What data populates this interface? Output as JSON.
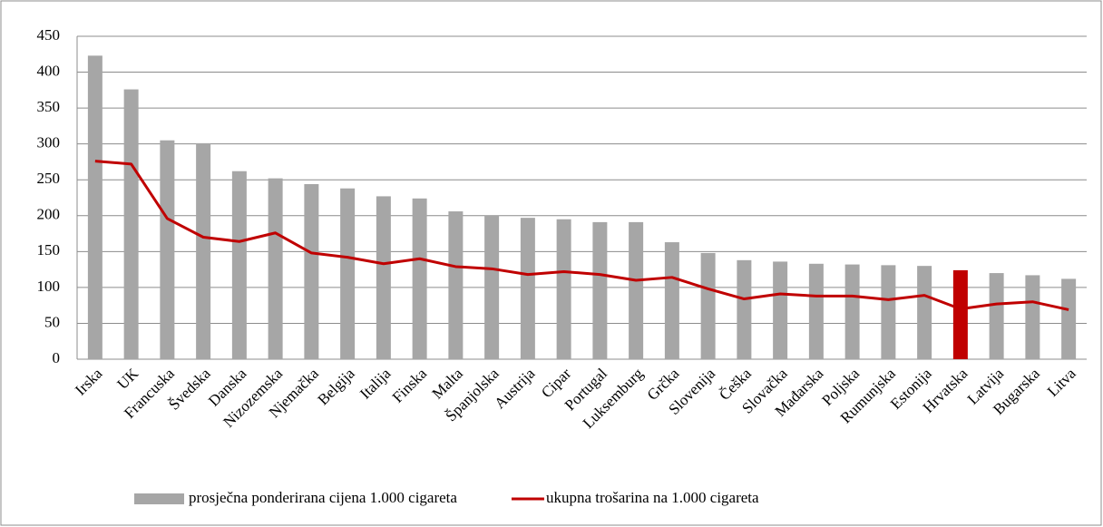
{
  "chart_data": {
    "type": "bar_line",
    "categories": [
      "Irska",
      "UK",
      "Francuska",
      "Švedska",
      "Danska",
      "Nizozemska",
      "Njemačka",
      "Belgija",
      "Italija",
      "Finska",
      "Malta",
      "Španjolska",
      "Austrija",
      "Cipar",
      "Portugal",
      "Luksemburg",
      "Grčka",
      "Slovenija",
      "Češka",
      "Slovačka",
      "Mađarska",
      "Poljska",
      "Rumunjska",
      "Estonija",
      "Hrvatska",
      "Latvija",
      "Bugarska",
      "Litva"
    ],
    "series": [
      {
        "name": "prosječna ponderirana cijena 1.000 cigareta",
        "type": "bar",
        "color": "#a6a6a6",
        "colors": [
          "#a6a6a6",
          "#a6a6a6",
          "#a6a6a6",
          "#a6a6a6",
          "#a6a6a6",
          "#a6a6a6",
          "#a6a6a6",
          "#a6a6a6",
          "#a6a6a6",
          "#a6a6a6",
          "#a6a6a6",
          "#a6a6a6",
          "#a6a6a6",
          "#a6a6a6",
          "#a6a6a6",
          "#a6a6a6",
          "#a6a6a6",
          "#a6a6a6",
          "#a6a6a6",
          "#a6a6a6",
          "#a6a6a6",
          "#a6a6a6",
          "#a6a6a6",
          "#a6a6a6",
          "#c00000",
          "#a6a6a6",
          "#a6a6a6",
          "#a6a6a6"
        ],
        "values": [
          423,
          376,
          305,
          301,
          262,
          252,
          244,
          238,
          227,
          224,
          206,
          200,
          197,
          195,
          191,
          191,
          163,
          148,
          138,
          136,
          133,
          132,
          131,
          130,
          124,
          120,
          117,
          112
        ]
      },
      {
        "name": "ukupna trošarina na 1.000 cigareta",
        "type": "line",
        "color": "#c00000",
        "values": [
          276,
          272,
          196,
          170,
          164,
          176,
          148,
          142,
          133,
          140,
          129,
          126,
          118,
          122,
          118,
          110,
          114,
          98,
          84,
          91,
          88,
          88,
          83,
          89,
          70,
          77,
          80,
          69
        ]
      }
    ],
    "ylim": [
      0,
      450
    ],
    "yticks": [
      0,
      50,
      100,
      150,
      200,
      250,
      300,
      350,
      400,
      450
    ],
    "grid": true,
    "legend": "bottom"
  }
}
